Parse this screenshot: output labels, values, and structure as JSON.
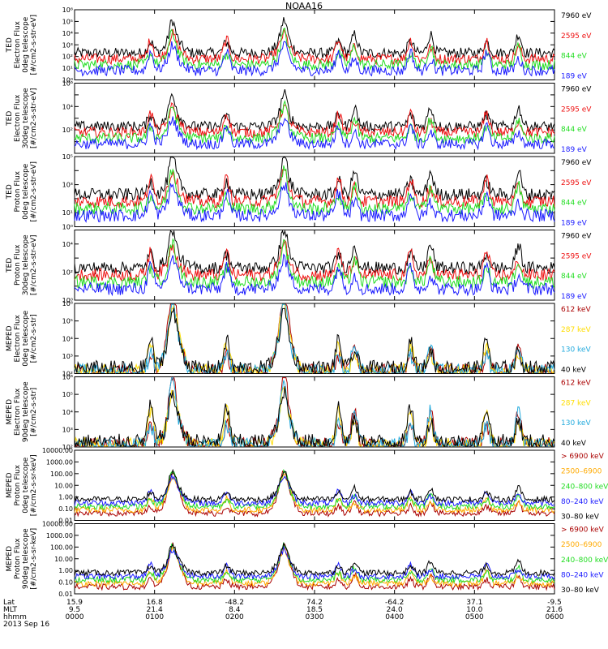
{
  "title": "NOAA16",
  "colors": {
    "black": "#000000",
    "blue": "#1a1aff",
    "green": "#22dd22",
    "red": "#ee1111",
    "darkred": "#aa0000",
    "yellow": "#ffdd00",
    "orange": "#ffaa00",
    "cyan": "#22aadd"
  },
  "chart_data": [
    {
      "type": "line",
      "ylabel": [
        "TED",
        "Electron Flux",
        "0deg telescope",
        "[#/cm2-s-str-eV]"
      ],
      "yscale": "log",
      "ylim": [
        1,
        1000000
      ],
      "yticks": [
        "10⁰",
        "10¹",
        "10²",
        "10³",
        "10⁴",
        "10⁵",
        "10⁶"
      ],
      "series": [
        {
          "name": "7960 eV",
          "color": "#000000"
        },
        {
          "name": "2595 eV",
          "color": "#ee1111"
        },
        {
          "name": "844 eV",
          "color": "#22dd22"
        },
        {
          "name": "189 eV",
          "color": "#1a1aff"
        }
      ]
    },
    {
      "type": "line",
      "ylabel": [
        "TED",
        "Electron Flux",
        "30deg telescope",
        "[#/cm2-s-str-eV]"
      ],
      "yscale": "log",
      "ylim": [
        1,
        1000000
      ],
      "yticks": [
        "",
        "",
        "10²",
        "",
        "10⁴",
        "",
        "10⁶"
      ],
      "series": [
        {
          "name": "7960 eV",
          "color": "#000000"
        },
        {
          "name": "2595 eV",
          "color": "#ee1111"
        },
        {
          "name": "844 eV",
          "color": "#22dd22"
        },
        {
          "name": "189 eV",
          "color": "#1a1aff"
        }
      ]
    },
    {
      "type": "line",
      "ylabel": [
        "TED",
        "Proton Flux",
        "0deg telescope",
        "[#/cm2-s-str-eV]"
      ],
      "yscale": "log",
      "ylim": [
        1,
        100000
      ],
      "yticks": [
        "10⁰",
        "10¹",
        "",
        "10³",
        "",
        "10⁵"
      ],
      "series": [
        {
          "name": "7960 eV",
          "color": "#000000"
        },
        {
          "name": "2595 eV",
          "color": "#ee1111"
        },
        {
          "name": "844 eV",
          "color": "#22dd22"
        },
        {
          "name": "189 eV",
          "color": "#1a1aff"
        }
      ]
    },
    {
      "type": "line",
      "ylabel": [
        "TED",
        "Proton Flux",
        "30deg telescope",
        "[#/cm2-s-str-eV]"
      ],
      "yscale": "log",
      "ylim": [
        1,
        100000
      ],
      "yticks": [
        "10⁰",
        "",
        "10²",
        "",
        "10⁴",
        ""
      ],
      "series": [
        {
          "name": "7960 eV",
          "color": "#000000"
        },
        {
          "name": "2595 eV",
          "color": "#ee1111"
        },
        {
          "name": "844 eV",
          "color": "#22dd22"
        },
        {
          "name": "189 eV",
          "color": "#1a1aff"
        }
      ]
    },
    {
      "type": "line",
      "ylabel": [
        "MEPED",
        "Electron Flux",
        "0deg telescope",
        "[#/cm2-s-str]"
      ],
      "yscale": "log",
      "ylim": [
        100,
        1000000
      ],
      "yticks": [
        "10²",
        "10³",
        "10⁴",
        "10⁵",
        "10⁶"
      ],
      "series": [
        {
          "name": "612 keV",
          "color": "#aa0000"
        },
        {
          "name": "287 keV",
          "color": "#ffdd00"
        },
        {
          "name": "130 keV",
          "color": "#22aadd"
        },
        {
          "name": "40 keV",
          "color": "#000000"
        }
      ]
    },
    {
      "type": "line",
      "ylabel": [
        "MEPED",
        "Electron Flux",
        "90deg telescope",
        "[#/cm2-s-str]"
      ],
      "yscale": "log",
      "ylim": [
        100,
        1000000
      ],
      "yticks": [
        "10²",
        "10³",
        "10⁴",
        "10⁵",
        "10⁶"
      ],
      "series": [
        {
          "name": "612 keV",
          "color": "#aa0000"
        },
        {
          "name": "287 keV",
          "color": "#ffdd00"
        },
        {
          "name": "130 keV",
          "color": "#22aadd"
        },
        {
          "name": "40 keV",
          "color": "#000000"
        }
      ]
    },
    {
      "type": "line",
      "ylabel": [
        "MEPED",
        "Proton Flux",
        "0deg telescope",
        "[#/cm2-s-sr-keV]"
      ],
      "yscale": "log",
      "ylim": [
        0.01,
        10000
      ],
      "yticks": [
        "0.01",
        "0.10",
        "1.00",
        "10.00",
        "100.00",
        "1000.00",
        "10000.00"
      ],
      "series": [
        {
          "name": "> 6900 keV",
          "color": "#aa0000"
        },
        {
          "name": "2500–6900",
          "color": "#ffaa00"
        },
        {
          "name": "240–800 keV",
          "color": "#22dd22"
        },
        {
          "name": "80–240 keV",
          "color": "#1a1aff"
        },
        {
          "name": "30–80 keV",
          "color": "#000000"
        }
      ]
    },
    {
      "type": "line",
      "ylabel": [
        "MEPED",
        "Proton Flux",
        "90deg telescope",
        "[#/cm2-s-sr-keV]"
      ],
      "yscale": "log",
      "ylim": [
        0.01,
        10000
      ],
      "yticks": [
        "0.01",
        "0.10",
        "1.00",
        "10.00",
        "100.00",
        "1000.00",
        "10000.00"
      ],
      "series": [
        {
          "name": "> 6900 keV",
          "color": "#aa0000"
        },
        {
          "name": "2500–6900",
          "color": "#ffaa00"
        },
        {
          "name": "240–800 keV",
          "color": "#22dd22"
        },
        {
          "name": "80–240 keV",
          "color": "#1a1aff"
        },
        {
          "name": "30–80 keV",
          "color": "#000000"
        }
      ]
    }
  ],
  "x_axis": {
    "time_range_hours": [
      0,
      6
    ],
    "major_ticks_hours": [
      0,
      1,
      2,
      3,
      4,
      5,
      6
    ],
    "rows": [
      {
        "label": "Lat",
        "values": [
          "15.9",
          "16.8",
          "-48.2",
          "74.2",
          "-64.2",
          "37.1",
          "-9.5"
        ]
      },
      {
        "label": "MLT",
        "values": [
          "9.5",
          "21.4",
          "8.4",
          "18.5",
          "24.0",
          "10.0",
          "21.6"
        ]
      },
      {
        "label": "hhmm",
        "values": [
          "0000",
          "0100",
          "0200",
          "0300",
          "0400",
          "0500",
          "0600"
        ]
      }
    ],
    "date": "2013 Sep 16"
  }
}
